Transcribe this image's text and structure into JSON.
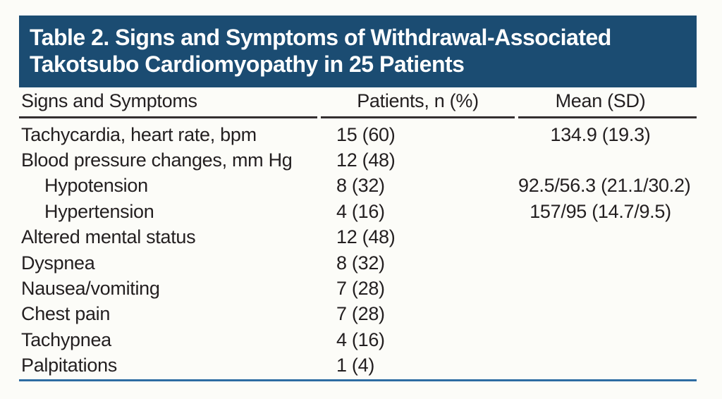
{
  "page": {
    "background": "#fcfcf8"
  },
  "colors": {
    "title_bar_bg": "#1b4c72",
    "title_text": "#ffffff",
    "body_text": "#231f20",
    "header_rule": "#332f30",
    "bottom_rule": "#2d6ca2"
  },
  "table": {
    "title_line1": "Table 2. Signs and Symptoms of Withdrawal-Associated",
    "title_line2": "Takotsubo Cardiomyopathy in 25 Patients",
    "columns": [
      "Signs and Symptoms",
      "Patients, n (%)",
      "Mean (SD)"
    ],
    "rows": [
      {
        "label": "Tachycardia, heart rate, bpm",
        "patients": "15 (60)",
        "mean": "134.9 (19.3)"
      },
      {
        "label": "Blood pressure changes, mm Hg",
        "patients": "12 (48)",
        "mean": ""
      },
      {
        "label": "Hypotension",
        "patients": "8 (32)",
        "mean": "92.5/56.3 (21.1/30.2)"
      },
      {
        "label": "Hypertension",
        "patients": "4 (16)",
        "mean": "157/95 (14.7/9.5)"
      },
      {
        "label": "Altered mental status",
        "patients": "12 (48)",
        "mean": ""
      },
      {
        "label": "Dyspnea",
        "patients": "8 (32)",
        "mean": ""
      },
      {
        "label": "Nausea/vomiting",
        "patients": "7 (28)",
        "mean": ""
      },
      {
        "label": "Chest pain",
        "patients": "7 (28)",
        "mean": ""
      },
      {
        "label": "Tachypnea",
        "patients": "4 (16)",
        "mean": ""
      },
      {
        "label": "Palpitations",
        "patients": "1 (4)",
        "mean": ""
      }
    ]
  }
}
